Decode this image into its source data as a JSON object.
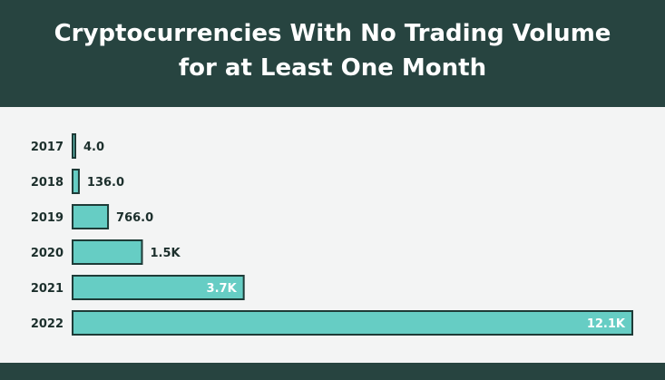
{
  "header": {
    "title_line1": "Cryptocurrencies With No Trading Volume",
    "title_line2": "for at Least One Month"
  },
  "colors": {
    "header_bg": "#274440",
    "bar_fill": "#66cdc4",
    "bar_stroke": "#1e3b37",
    "background": "#f3f4f4",
    "label_text": "#1c2f2c"
  },
  "chart_data": {
    "type": "bar",
    "orientation": "horizontal",
    "title": "Cryptocurrencies With No Trading Volume for at Least One Month",
    "categories": [
      "2017",
      "2018",
      "2019",
      "2020",
      "2021",
      "2022"
    ],
    "values": [
      4,
      136,
      766,
      1500,
      3700,
      12100
    ],
    "value_labels": [
      "4.0",
      "136.0",
      "766.0",
      "1.5K",
      "3.7K",
      "12.1K"
    ],
    "xlabel": "",
    "ylabel": "",
    "xlim": [
      0,
      12100
    ],
    "grid": false,
    "legend": "none"
  }
}
